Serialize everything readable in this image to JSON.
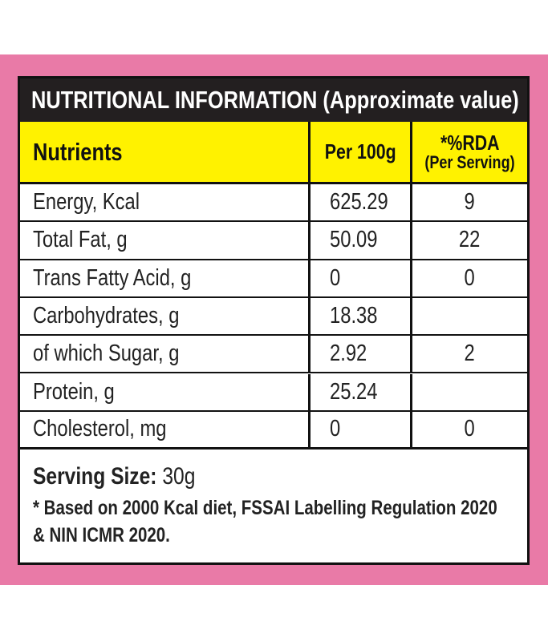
{
  "header": {
    "title": "NUTRITIONAL INFORMATION (Approximate value)"
  },
  "table": {
    "columns": [
      "Nutrients",
      "Per 100g",
      {
        "label": "*%RDA",
        "sub": "(Per Serving)"
      }
    ],
    "rows": [
      [
        "Energy, Kcal",
        "625.29",
        "9"
      ],
      [
        "Total Fat, g",
        "50.09",
        "22"
      ],
      [
        "Trans Fatty Acid, g",
        "0",
        "0"
      ],
      [
        "Carbohydrates, g",
        "18.38",
        null
      ],
      [
        "of which Sugar, g",
        "2.92",
        "2"
      ],
      [
        "Protein, g",
        "25.24",
        null
      ],
      [
        "Cholesterol, mg",
        "0",
        "0"
      ]
    ]
  },
  "footer": {
    "serving_label": "Serving Size:",
    "serving_value": "30g",
    "note": [
      "* Based on 2000 Kcal diet, FSSAI Labelling Regulation 2020",
      "& NIN ICMR 2020."
    ]
  }
}
